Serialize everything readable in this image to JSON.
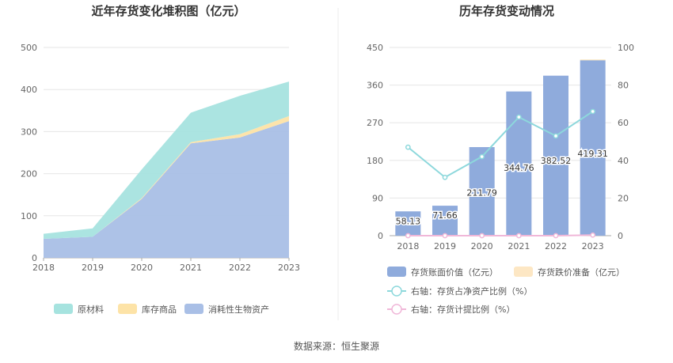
{
  "source_label": "数据来源：恒生聚源",
  "chart_data": [
    {
      "type": "area",
      "stacked": true,
      "title": "近年存货变化堆积图（亿元）",
      "x": [
        "2018",
        "2019",
        "2020",
        "2021",
        "2022",
        "2023"
      ],
      "ylim": [
        0,
        500
      ],
      "yticks": [
        "0",
        "100",
        "200",
        "300",
        "400",
        "500"
      ],
      "grid": true,
      "legend_position": "bottom",
      "series": [
        {
          "name": "消耗性生物资产",
          "color": "#a9bfe6",
          "values": [
            45,
            50,
            140,
            272,
            286,
            325
          ]
        },
        {
          "name": "库存商品",
          "color": "#fde3a7",
          "values": [
            0,
            0,
            2,
            3,
            8,
            12
          ]
        },
        {
          "name": "原材料",
          "color": "#a6e3df",
          "values": [
            12,
            20,
            68,
            70,
            91,
            82
          ]
        }
      ],
      "legend_order": [
        "原材料",
        "库存商品",
        "消耗性生物资产"
      ]
    },
    {
      "type": "bar",
      "title": "历年存货变动情况",
      "categories": [
        "2018",
        "2019",
        "2020",
        "2021",
        "2022",
        "2023"
      ],
      "ylim": [
        0,
        450
      ],
      "yticks": [
        "0",
        "90",
        "180",
        "270",
        "360",
        "450"
      ],
      "y2lim": [
        0,
        100
      ],
      "y2ticks": [
        "0",
        "20",
        "40",
        "60",
        "80",
        "100"
      ],
      "grid": true,
      "legend_position": "bottom",
      "bar_series": [
        {
          "name": "存货账面价值（亿元）",
          "color": "#8fabdc",
          "values": [
            58.13,
            71.66,
            211.79,
            344.76,
            382.52,
            419.31
          ],
          "labels": [
            "58.13",
            "71.66",
            "211.79",
            "344.76",
            "382.52",
            "419.31"
          ]
        },
        {
          "name": "存货跌价准备（亿元）",
          "color": "#fde7c4",
          "values": [
            0,
            0,
            0,
            0,
            0,
            1.5
          ]
        }
      ],
      "line_series": [
        {
          "name": "右轴：存货占净资产比例（%）",
          "color": "#8dd8dc",
          "axis": "right",
          "values": [
            47,
            31,
            42,
            63,
            53,
            66
          ]
        },
        {
          "name": "右轴：存货计提比例（%）",
          "color": "#f0b7d8",
          "axis": "right",
          "values": [
            0,
            0,
            0,
            0,
            0,
            0.3
          ]
        }
      ]
    }
  ]
}
